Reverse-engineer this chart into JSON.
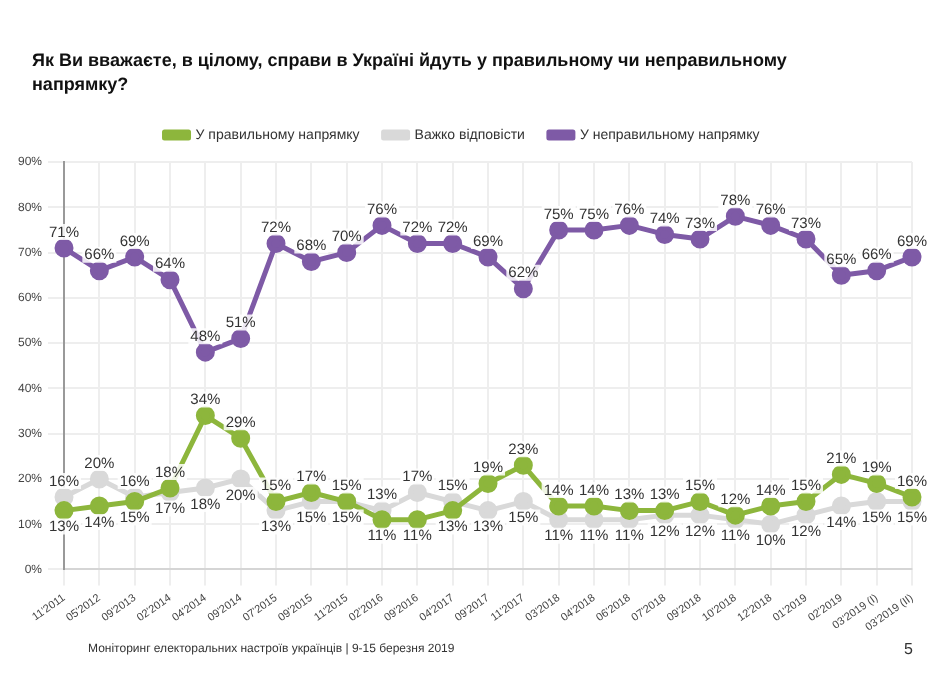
{
  "chart_data": {
    "type": "line",
    "title": "Як Ви вважаєте, в цілому, справи в Україні йдуть у правильному чи неправильному напрямку?",
    "categories": [
      "11'2011",
      "05'2012",
      "09'2013",
      "02'2014",
      "04'2014",
      "09'2014",
      "07'2015",
      "09'2015",
      "11'2015",
      "02'2016",
      "09'2016",
      "04'2017",
      "09'2017",
      "11'2017",
      "03'2018",
      "04'2018",
      "06'2018",
      "07'2018",
      "09'2018",
      "10'2018",
      "12'2018",
      "01'2019",
      "02'2019",
      "03'2019 (I)",
      "03'2019 (II)"
    ],
    "series": [
      {
        "name": "У правильному напрямку",
        "color": "#8db63c",
        "values": [
          13,
          14,
          15,
          18,
          34,
          29,
          15,
          17,
          15,
          11,
          11,
          13,
          19,
          23,
          14,
          14,
          13,
          13,
          15,
          12,
          14,
          15,
          21,
          19,
          16
        ],
        "value_labels": [
          "13%",
          "14%",
          "15%",
          "18%",
          "34%",
          "29%",
          "15%",
          "17%",
          "15%",
          "11%",
          "11%",
          "13%",
          "19%",
          "23%",
          "14%",
          "14%",
          "13%",
          "13%",
          "15%",
          "12%",
          "14%",
          "15%",
          "21%",
          "19%",
          "16%"
        ]
      },
      {
        "name": "Важко відповісти",
        "color": "#d9d9d9",
        "values": [
          16,
          20,
          16,
          17,
          18,
          20,
          13,
          15,
          15,
          13,
          17,
          15,
          13,
          15,
          11,
          11,
          11,
          12,
          12,
          11,
          10,
          12,
          14,
          15,
          15
        ],
        "value_labels": [
          "16%",
          "20%",
          "16%",
          "17%",
          "18%",
          "20%",
          "13%",
          "15%",
          "15%",
          "13%",
          "17%",
          "15%",
          "13%",
          "15%",
          "11%",
          "11%",
          "11%",
          "12%",
          "12%",
          "11%",
          "10%",
          "12%",
          "14%",
          "15%",
          "15%"
        ]
      },
      {
        "name": "У неправильному напрямку",
        "color": "#7e5aa6",
        "values": [
          71,
          66,
          69,
          64,
          48,
          51,
          72,
          68,
          70,
          76,
          72,
          72,
          69,
          62,
          75,
          75,
          76,
          74,
          73,
          78,
          76,
          73,
          65,
          66,
          69
        ],
        "value_labels": [
          "71%",
          "66%",
          "69%",
          "64%",
          "48%",
          "51%",
          "72%",
          "68%",
          "70%",
          "76%",
          "72%",
          "72%",
          "69%",
          "62%",
          "75%",
          "75%",
          "76%",
          "74%",
          "73%",
          "78%",
          "76%",
          "73%",
          "65%",
          "66%",
          "69%"
        ]
      }
    ],
    "ylim": [
      0,
      90
    ],
    "yticks": [
      {
        "value": 0,
        "label": "0%"
      },
      {
        "value": 10,
        "label": "10%"
      },
      {
        "value": 20,
        "label": "20%"
      },
      {
        "value": 30,
        "label": "30%"
      },
      {
        "value": 40,
        "label": "40%"
      },
      {
        "value": 50,
        "label": "50%"
      },
      {
        "value": 60,
        "label": "60%"
      },
      {
        "value": 70,
        "label": "70%"
      },
      {
        "value": 80,
        "label": "80%"
      },
      {
        "value": 90,
        "label": "90%"
      }
    ],
    "grid": true,
    "legend": "top",
    "marker": "circle",
    "line_style": "solid",
    "annotations": [
      "Моніторинг електоральних настроїв українців | 9-15 березня 2019",
      "5"
    ]
  }
}
